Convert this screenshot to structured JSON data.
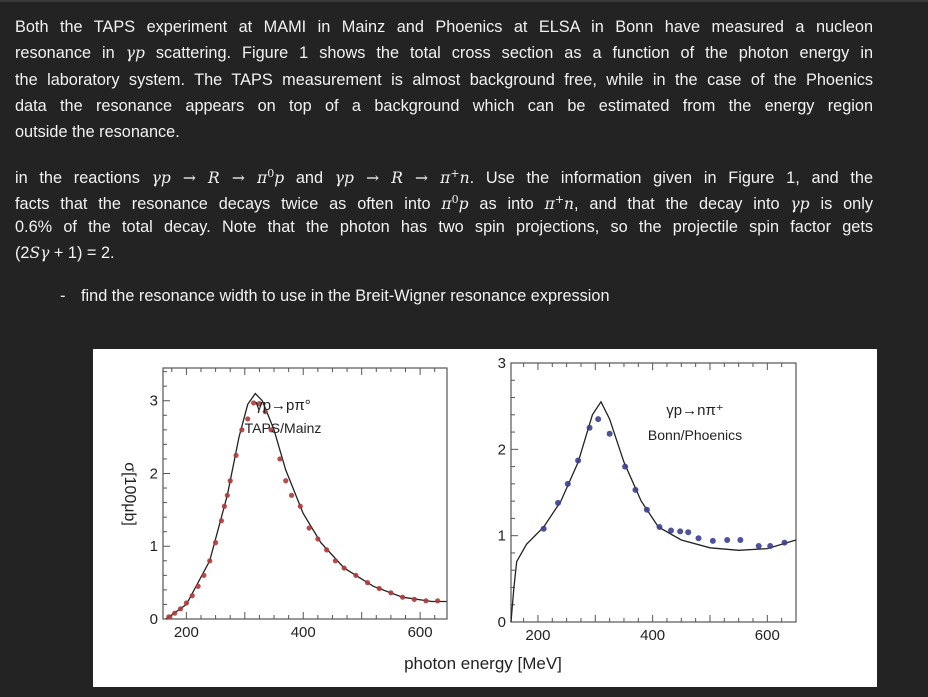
{
  "paragraph1": [
    [
      {
        "t": "Both the TAPS experiment at MAMI in Mainz and Phoenics at ELSA in Bonn have measured a nucleon"
      }
    ],
    [
      {
        "t": "resonance in "
      },
      {
        "t": "γp",
        "m": true
      },
      {
        "t": " scattering. Figure 1 shows the total cross section as a function of the photon energy in"
      }
    ],
    [
      {
        "t": "the laboratory system. The TAPS measurement is almost background free, while in the case of the Phoenics"
      }
    ],
    [
      {
        "t": "data the resonance appears on top of a background which can be estimated from the energy region"
      }
    ],
    [
      {
        "t": "outside the resonance."
      }
    ]
  ],
  "paragraph2": [
    [
      {
        "t": "in the reactions "
      },
      {
        "t": "γp → R → π",
        "m": true
      },
      {
        "t": "0",
        "m": true,
        "sup": true
      },
      {
        "t": "p",
        "m": true
      },
      {
        "t": " and "
      },
      {
        "t": "γp → R → π",
        "m": true
      },
      {
        "t": "+",
        "m": true,
        "sup": true
      },
      {
        "t": "n",
        "m": true
      },
      {
        "t": ". Use the information given in Figure 1, and the"
      }
    ],
    [
      {
        "t": "facts that the resonance decays twice as often into "
      },
      {
        "t": "π",
        "m": true
      },
      {
        "t": "0",
        "m": true,
        "sup": true
      },
      {
        "t": "p",
        "m": true
      },
      {
        "t": " as into "
      },
      {
        "t": "π",
        "m": true
      },
      {
        "t": "+",
        "m": true,
        "sup": true
      },
      {
        "t": "n",
        "m": true
      },
      {
        "t": ", and that the decay into "
      },
      {
        "t": "γp",
        "m": true
      },
      {
        "t": " is only"
      }
    ],
    [
      {
        "t": "0.6% of the total decay. Note that the photon has two spin projections, so the projectile spin factor gets"
      }
    ],
    [
      {
        "t": "(2"
      },
      {
        "t": "Sγ",
        "m": true
      },
      {
        "t": " + 1) = 2."
      }
    ]
  ],
  "bullet": {
    "dash": "-",
    "text": "find the resonance width to use in the Breit-Wigner resonance expression"
  },
  "figure": {
    "xlabel": "photon energy [MeV]",
    "ylabel": "σ[100μb]",
    "colors": {
      "taps_points": "#b03a3a",
      "phoenics_points": "#3a3f8f",
      "curve": "#222222"
    }
  },
  "chart_data": [
    {
      "type": "scatter",
      "title": "γp→pπ°",
      "subtitle": "TAPS/Mainz",
      "xlabel": "",
      "ylabel": "σ[100μb]",
      "xlim": [
        160,
        646
      ],
      "ylim": [
        0,
        3.45
      ],
      "xticks": [
        "200",
        "400",
        "600"
      ],
      "yticks": [
        "0",
        "1",
        "2",
        "3"
      ],
      "points": {
        "x": [
          170,
          180,
          190,
          200,
          210,
          220,
          230,
          240,
          250,
          260,
          265,
          270,
          275,
          285,
          295,
          305,
          315,
          325,
          335,
          345,
          360,
          370,
          380,
          395,
          410,
          425,
          440,
          455,
          470,
          490,
          510,
          530,
          550,
          570,
          590,
          610,
          630
        ],
        "y": [
          0.03,
          0.08,
          0.14,
          0.22,
          0.32,
          0.45,
          0.6,
          0.8,
          1.05,
          1.35,
          1.55,
          1.7,
          1.9,
          2.25,
          2.6,
          2.75,
          2.97,
          2.96,
          2.85,
          2.6,
          2.2,
          1.9,
          1.7,
          1.55,
          1.25,
          1.1,
          0.95,
          0.8,
          0.7,
          0.6,
          0.5,
          0.42,
          0.36,
          0.3,
          0.27,
          0.25,
          0.25
        ]
      },
      "curve": {
        "x": [
          165,
          200,
          240,
          270,
          290,
          305,
          318,
          330,
          350,
          370,
          400,
          430,
          470,
          520,
          570,
          620,
          645
        ],
        "y": [
          0,
          0.2,
          0.8,
          1.7,
          2.5,
          2.95,
          3.1,
          3.0,
          2.6,
          2.05,
          1.45,
          1.05,
          0.7,
          0.45,
          0.3,
          0.24,
          0.24
        ]
      }
    },
    {
      "type": "scatter",
      "title": "γp→nπ⁺",
      "subtitle": "Bonn/Phoenics",
      "xlabel": "photon energy [MeV]",
      "ylabel": "",
      "xlim": [
        153,
        650
      ],
      "ylim": [
        0,
        3
      ],
      "xticks": [
        "200",
        "400",
        "600"
      ],
      "yticks": [
        "0",
        "1",
        "2",
        "3"
      ],
      "points": {
        "x": [
          210,
          235,
          252,
          270,
          290,
          305,
          325,
          352,
          370,
          390,
          412,
          432,
          448,
          462,
          480,
          505,
          530,
          553,
          585,
          605,
          630
        ],
        "y": [
          1.08,
          1.38,
          1.6,
          1.87,
          2.25,
          2.35,
          2.18,
          1.8,
          1.53,
          1.3,
          1.1,
          1.06,
          1.05,
          1.04,
          0.97,
          0.94,
          0.95,
          0.95,
          0.88,
          0.88,
          0.92
        ]
      },
      "curve": {
        "x": [
          153,
          158,
          163,
          180,
          210,
          240,
          270,
          295,
          310,
          325,
          350,
          380,
          410,
          450,
          500,
          550,
          600,
          650
        ],
        "y": [
          0,
          0.4,
          0.7,
          0.9,
          1.1,
          1.4,
          1.85,
          2.4,
          2.55,
          2.35,
          1.85,
          1.4,
          1.1,
          0.95,
          0.86,
          0.83,
          0.85,
          0.95
        ]
      }
    }
  ]
}
